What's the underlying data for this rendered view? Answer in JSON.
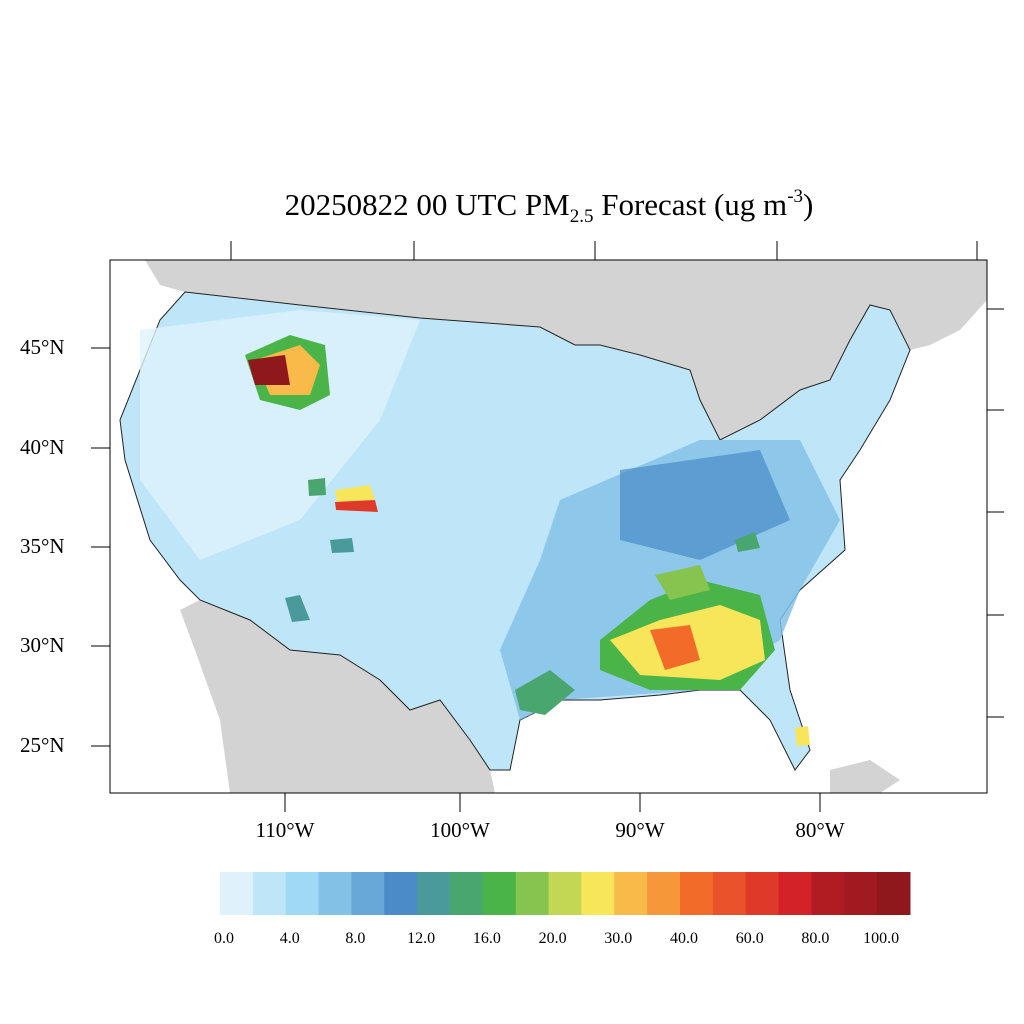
{
  "title": {
    "main": "20250822 00 UTC PM",
    "sub": "2.5",
    "mid": " Forecast (ug m",
    "sup": "-3",
    "end": ")"
  },
  "lat_labels": [
    "45°N",
    "40°N",
    "35°N",
    "30°N",
    "25°N"
  ],
  "lon_labels": [
    "110°W",
    "100°W",
    "90°W",
    "80°W"
  ],
  "colorbar": {
    "labels": [
      "0.0",
      "4.0",
      "8.0",
      "12.0",
      "16.0",
      "20.0",
      "30.0",
      "40.0",
      "60.0",
      "80.0",
      "100.0"
    ],
    "colors": [
      "#dff2fb",
      "#bfe6f8",
      "#9fd9f5",
      "#84c1e7",
      "#68a8d9",
      "#4a8bc8",
      "#4a9a9c",
      "#4aa66f",
      "#4ab449",
      "#86c44f",
      "#c3d754",
      "#f8e65a",
      "#f8bb4a",
      "#f6973a",
      "#f26b29",
      "#e9522b",
      "#df3a29",
      "#d42229",
      "#b01c22",
      "#a01a20",
      "#8e181c"
    ]
  },
  "colors": {
    "land": "#d3d3d3",
    "water": "#ffffff",
    "us_base": "#bfe6f8"
  }
}
